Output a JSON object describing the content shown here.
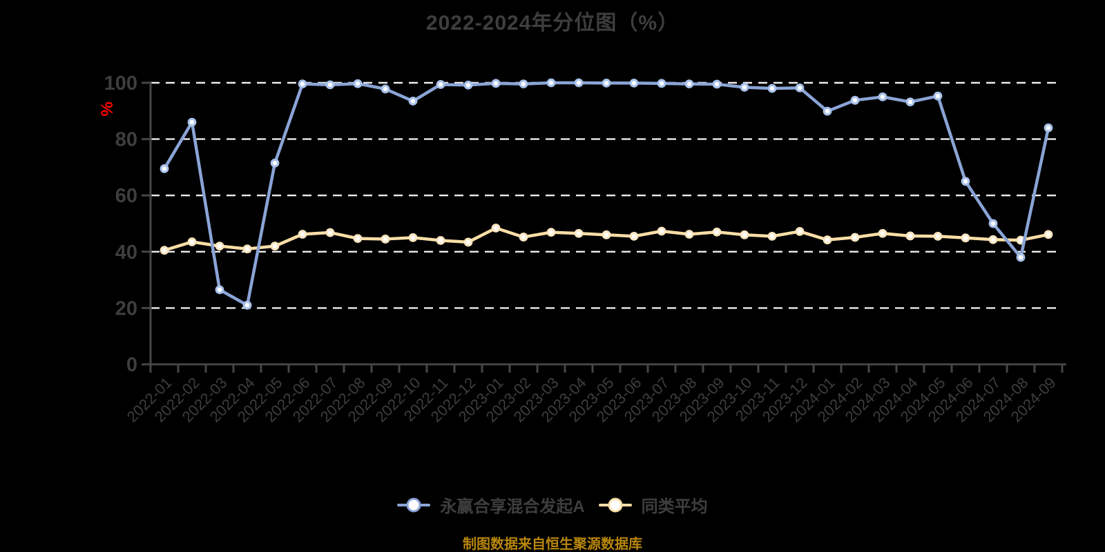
{
  "title": "2022-2024年分位图（%）",
  "y_axis_unit_label": "%",
  "source_note": "制图数据来自恒生聚源数据库",
  "colors": {
    "background": "#000000",
    "title_text": "#3E3E3E",
    "axis": "#464646",
    "axis_label": "#3E3E3E",
    "gridline": "#EDEDED",
    "fund_line": "#8AA4D6",
    "fund_marker_ring": "#A9C2EA",
    "average_line": "#FADEA7",
    "average_marker_ring": "#FBE6C2",
    "marker_fill": "#FFFFFF",
    "unit_label_text": "#FF0000",
    "source_note_text": "#B8860B",
    "legend_text": "#3E3E3E"
  },
  "legend": [
    {
      "label": "永赢合享混合发起A",
      "series_id": "fund"
    },
    {
      "label": "同类平均",
      "series_id": "peer-average"
    }
  ],
  "chart_data": {
    "type": "line",
    "title": "2022-2024年分位图（%）",
    "xlabel": "",
    "ylabel": "%",
    "ylim": [
      0,
      100
    ],
    "yticks": [
      0,
      20,
      40,
      60,
      80,
      100
    ],
    "grid": "horizontal-dashed",
    "legend_position": "bottom",
    "x": [
      "2022-01",
      "2022-02",
      "2022-03",
      "2022-04",
      "2022-05",
      "2022-06",
      "2022-07",
      "2022-08",
      "2022-09",
      "2022-10",
      "2022-11",
      "2022-12",
      "2023-01",
      "2023-02",
      "2023-03",
      "2023-04",
      "2023-05",
      "2023-06",
      "2023-07",
      "2023-08",
      "2023-09",
      "2023-10",
      "2023-11",
      "2023-12",
      "2024-01",
      "2024-02",
      "2024-03",
      "2024-04",
      "2024-05",
      "2024-06",
      "2024-07",
      "2024-08",
      "2024-09"
    ],
    "series": [
      {
        "id": "fund",
        "name": "永赢合享混合发起A",
        "color": "#8AA4D6",
        "marker_ring": "#A9C2EA",
        "values": [
          69.5,
          86,
          26.5,
          21,
          71.5,
          99.6,
          99.3,
          99.7,
          97.8,
          93.5,
          99.4,
          99.2,
          99.8,
          99.6,
          100,
          100,
          99.9,
          99.9,
          99.8,
          99.6,
          99.5,
          98.4,
          98,
          98.2,
          89.9,
          93.8,
          95,
          93.2,
          95.3,
          65,
          50,
          38,
          84
        ]
      },
      {
        "id": "peer-average",
        "name": "同类平均",
        "color": "#FADEA7",
        "marker_ring": "#FBE6C2",
        "values": [
          40.5,
          43.5,
          42,
          41,
          42,
          46.2,
          46.8,
          44.7,
          44.5,
          45,
          44,
          43.4,
          48.4,
          45.2,
          46.9,
          46.5,
          46,
          45.5,
          47.3,
          46.2,
          47,
          46,
          45.5,
          47.2,
          44.2,
          45.1,
          46.5,
          45.6,
          45.5,
          44.9,
          44.3,
          44.1,
          46.1
        ]
      }
    ]
  }
}
